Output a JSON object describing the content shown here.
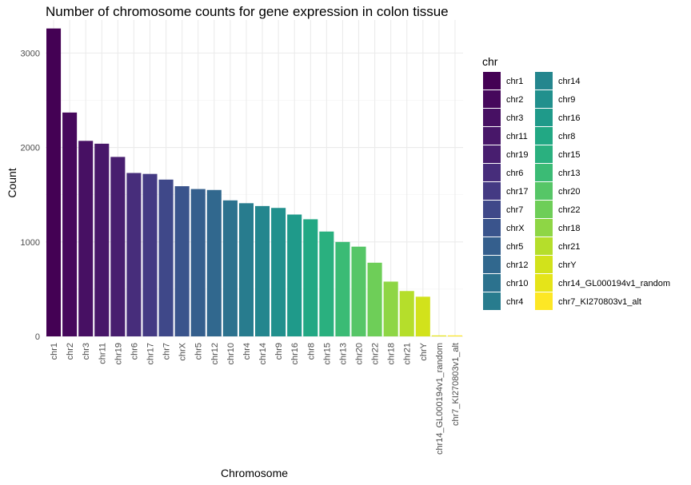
{
  "chart_data": {
    "type": "bar",
    "title": "Number of chromosome counts for gene expression in colon tissue",
    "xlabel": "Chromosome",
    "ylabel": "Count",
    "ylim": [
      0,
      3350
    ],
    "y_ticks": [
      0,
      1000,
      2000,
      3000
    ],
    "grid": true,
    "legend_title": "chr",
    "legend_position": "right",
    "categories": [
      "chr1",
      "chr2",
      "chr3",
      "chr11",
      "chr19",
      "chr6",
      "chr17",
      "chr7",
      "chrX",
      "chr5",
      "chr12",
      "chr10",
      "chr4",
      "chr14",
      "chr9",
      "chr16",
      "chr8",
      "chr15",
      "chr13",
      "chr20",
      "chr22",
      "chr18",
      "chr21",
      "chrY",
      "chr14_GL000194v1_random",
      "chr7_KI270803v1_alt"
    ],
    "values": [
      3260,
      2370,
      2070,
      2040,
      1900,
      1730,
      1720,
      1660,
      1590,
      1560,
      1550,
      1440,
      1410,
      1380,
      1360,
      1290,
      1240,
      1110,
      1000,
      950,
      780,
      580,
      480,
      420,
      10,
      10
    ],
    "colors": [
      "#440154",
      "#46085c",
      "#471063",
      "#481769",
      "#481e6f",
      "#472d7b",
      "#443a83",
      "#3f4889",
      "#3a548c",
      "#355f8d",
      "#31688e",
      "#2c728e",
      "#287c8e",
      "#24868e",
      "#21908d",
      "#1f9a8a",
      "#22a884",
      "#2ab07f",
      "#3bbb75",
      "#56c667",
      "#6ece58",
      "#8ed645",
      "#b5de2b",
      "#d2e21b",
      "#e5e419",
      "#fde725"
    ]
  }
}
